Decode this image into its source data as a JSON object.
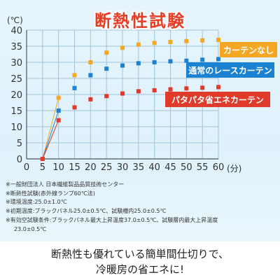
{
  "chart_data": {
    "type": "line",
    "title": "断熱性試験",
    "ylabel": "(℃)",
    "xlabel": "(分)",
    "x": [
      0,
      5,
      10,
      15,
      20,
      25,
      30,
      35,
      40,
      45,
      50,
      55,
      60
    ],
    "xtick_labels": [
      "0",
      "5",
      "10",
      "15",
      "20",
      "25",
      "30",
      "35",
      "40",
      "45",
      "50",
      "55",
      "60"
    ],
    "ytick_labels": [
      "0",
      "5",
      "10",
      "15",
      "20",
      "25",
      "30",
      "35",
      "40"
    ],
    "xlim": [
      0,
      60
    ],
    "ylim": [
      0,
      40
    ],
    "grid": true,
    "series": [
      {
        "name": "カーテンなし",
        "color": "#f5a623",
        "x": [
          5,
          10,
          15,
          20,
          25,
          30,
          35,
          40,
          45,
          50,
          55,
          60
        ],
        "values": [
          0,
          19,
          26,
          30,
          33,
          34.5,
          35.5,
          36,
          36.3,
          36.6,
          36.8,
          37
        ]
      },
      {
        "name": "通常のレースカーテン",
        "color": "#1b82d1",
        "x": [
          5,
          10,
          15,
          20,
          25,
          30,
          35,
          40,
          45,
          50,
          55,
          60
        ],
        "values": [
          0,
          15,
          22,
          26,
          28,
          29,
          29.7,
          30,
          30.3,
          30.5,
          30.8,
          31
        ]
      },
      {
        "name": "パタパタ省エネカーテン",
        "color": "#e03a2a",
        "x": [
          5,
          10,
          15,
          20,
          25,
          30,
          35,
          40,
          45,
          50,
          55,
          60
        ],
        "values": [
          0,
          12,
          16,
          18.5,
          19.5,
          20.3,
          21,
          21.3,
          21.6,
          21.9,
          22.1,
          22.3
        ]
      }
    ]
  },
  "notes": [
    "※一般財団法人 日本繊維製品品質技術センター",
    "※断熱性試験(赤外線ランプ60℃法)",
    "※環境温度:25.0±1.0℃",
    "※初期温度:ブラックパネル25.0±0.5℃、試験槽内25.0±0.5℃",
    "※有効空試験条件:ブラックパネル最大上昇温度37.0±0.5℃、試験層内最大上昇温度",
    "23.0±0.5℃"
  ],
  "caption": {
    "line1": "断熱性も優れている簡単間仕切りで、",
    "line2": "冷暖房の省エネに!"
  }
}
